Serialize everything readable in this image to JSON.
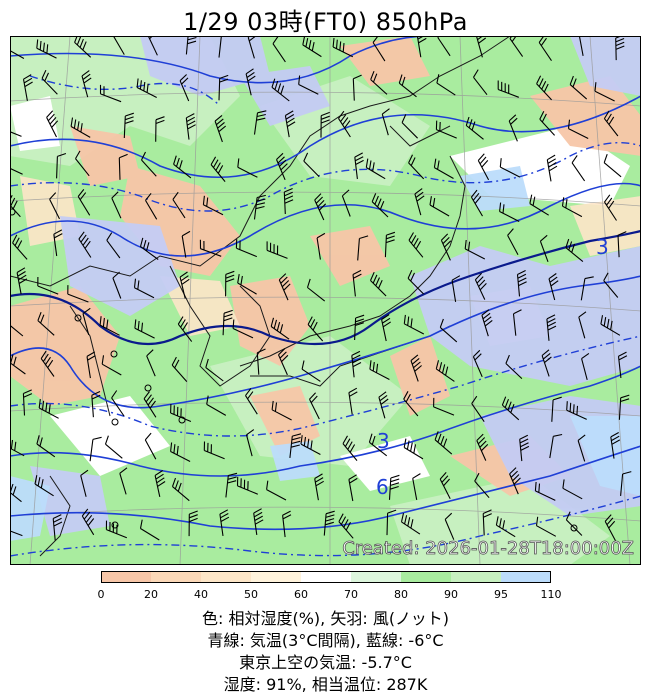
{
  "title": "1/29  03時(FT0)     850hPa",
  "created": "Created: 2026-01-28T18:00:00Z",
  "contour_labels": [
    "3",
    "3",
    "6"
  ],
  "colorbar": {
    "ticks": [
      "0",
      "20",
      "40",
      "50",
      "60",
      "70",
      "80",
      "90",
      "95",
      "110"
    ],
    "colors": [
      "#f7c6a8",
      "#fbd8b8",
      "#fde6c8",
      "#fff3dc",
      "#ffffff",
      "#ddf6dd",
      "#a9ec9f",
      "#c7f0c0",
      "#bcdcfb",
      "#c4ccf4"
    ]
  },
  "legend_lines": [
    "色: 相対湿度(%),  矢羽: 風(ノット)",
    "青線: 気温(3°C間隔), 藍線: -6°C",
    "東京上空の気温: -5.7°C",
    "湿度: 91%, 相当温位: 287K"
  ],
  "colors": {
    "contour_blue": "#1f3fd6",
    "contour_navy": "#0a1a8c",
    "coastline": "#1a1a1a"
  }
}
